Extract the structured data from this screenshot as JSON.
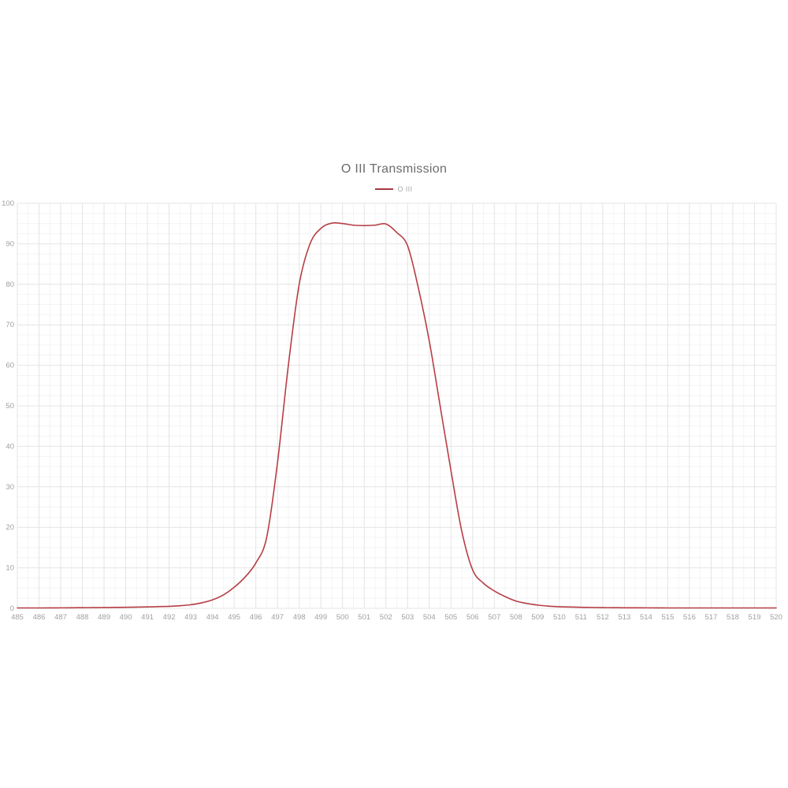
{
  "chart": {
    "title": "O III Transmission",
    "legend_label": "O III",
    "colors": {
      "line": "#b73e45",
      "legend_swatch": "#a53a42",
      "grid_major": "#e4e4e4",
      "grid_minor": "#f4f4f4",
      "tick_text": "#a0a0a0",
      "title_text": "#6c6c6c",
      "background": "#ffffff"
    }
  },
  "chart_data": {
    "type": "line",
    "title": "O III Transmission",
    "xlabel": "",
    "ylabel": "",
    "xlim": [
      485,
      520
    ],
    "ylim": [
      0,
      100
    ],
    "grid": "major+minor",
    "legend_position": "top",
    "x_ticks": [
      485,
      486,
      487,
      488,
      489,
      490,
      491,
      492,
      493,
      494,
      495,
      496,
      497,
      498,
      499,
      500,
      501,
      502,
      503,
      504,
      505,
      506,
      507,
      508,
      509,
      510,
      511,
      512,
      513,
      514,
      515,
      516,
      517,
      518,
      519,
      520
    ],
    "y_ticks": [
      0,
      10,
      20,
      30,
      40,
      50,
      60,
      70,
      80,
      90,
      100
    ],
    "series": [
      {
        "name": "O III",
        "color": "#b73e45",
        "x": [
          485,
          485.5,
          486,
          486.5,
          487,
          487.5,
          488,
          488.5,
          489,
          489.5,
          490,
          490.5,
          491,
          491.5,
          492,
          492.5,
          493,
          493.5,
          494,
          494.5,
          495,
          495.5,
          496,
          496.5,
          497,
          497.5,
          498,
          498.5,
          499,
          499.5,
          500,
          500.5,
          501,
          501.5,
          502,
          502.5,
          503,
          503.5,
          504,
          504.5,
          505,
          505.5,
          506,
          506.5,
          507,
          507.5,
          508,
          508.5,
          509,
          509.5,
          510,
          510.5,
          511,
          511.5,
          512,
          512.5,
          513,
          513.5,
          514,
          514.5,
          515,
          515.5,
          516,
          516.5,
          517,
          517.5,
          518,
          518.5,
          519,
          519.5,
          520
        ],
        "values": [
          0.1,
          0.1,
          0.1,
          0.11,
          0.12,
          0.14,
          0.16,
          0.18,
          0.2,
          0.23,
          0.26,
          0.3,
          0.35,
          0.42,
          0.5,
          0.65,
          0.9,
          1.35,
          2.1,
          3.3,
          5.2,
          7.7,
          11.2,
          17.5,
          36.0,
          60.0,
          80.0,
          90.0,
          93.8,
          95.1,
          95.0,
          94.6,
          94.5,
          94.6,
          94.9,
          92.8,
          89.5,
          79.0,
          66.0,
          50.0,
          34.0,
          19.0,
          9.5,
          6.2,
          4.3,
          2.9,
          1.8,
          1.2,
          0.8,
          0.55,
          0.4,
          0.32,
          0.26,
          0.22,
          0.18,
          0.16,
          0.14,
          0.13,
          0.12,
          0.11,
          0.1,
          0.1,
          0.1,
          0.1,
          0.1,
          0.1,
          0.1,
          0.1,
          0.1,
          0.1,
          0.1
        ]
      }
    ]
  }
}
